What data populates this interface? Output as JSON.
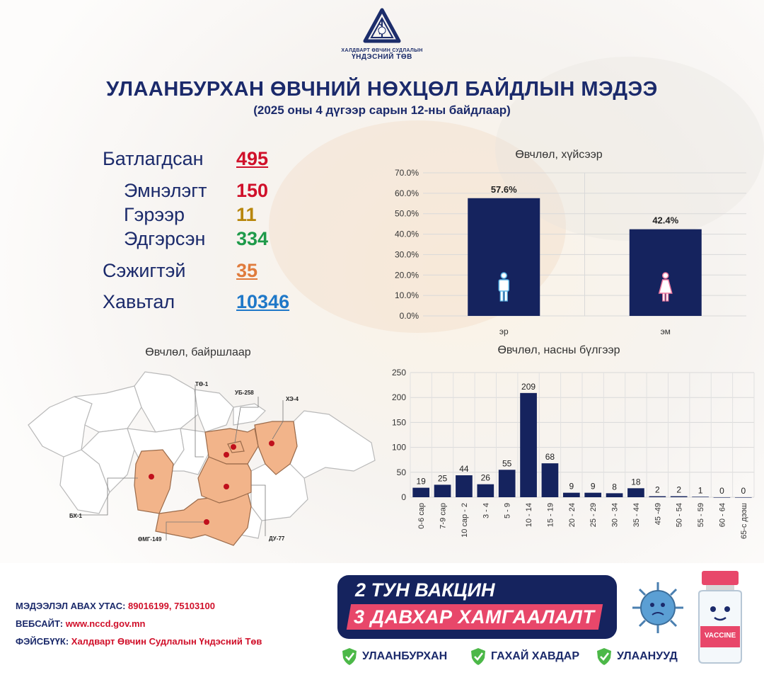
{
  "logo": {
    "org_small": "ХАЛДВАРТ ӨВЧИН СУДЛАЛЫН",
    "org_big": "ҮНДЭСНИЙ ТӨВ"
  },
  "header": {
    "title": "УЛААНБУРХАН ӨВЧНИЙ НӨХЦӨЛ БАЙДЛЫН МЭДЭЭ",
    "subtitle": "(2025 оны 4 дүгээр сарын 12-ны байдлаар)"
  },
  "stats": {
    "confirmed_label": "Батлагдсан",
    "confirmed_value": "495",
    "hospital_label": "Эмнэлэгт",
    "hospital_value": "150",
    "home_label": "Гэрээр",
    "home_value": "11",
    "recovered_label": "Эдгэрсэн",
    "recovered_value": "334",
    "suspected_label": "Сэжигтэй",
    "suspected_value": "35",
    "contacts_label": "Хавьтал",
    "contacts_value": "10346"
  },
  "colors": {
    "navy": "#1b2a6b",
    "bar": "#15235e",
    "red": "#d0102a",
    "amber": "#b8860b",
    "green": "#1e9a4a",
    "orange": "#e07b3c",
    "blue": "#1f78c8",
    "map_fill": "#f2b48a",
    "pink": "#e8476a"
  },
  "chart_data": [
    {
      "type": "bar",
      "title": "Өвчлөл, хүйсээр",
      "categories": [
        "эр",
        "эм"
      ],
      "values": [
        57.6,
        42.4
      ],
      "value_labels": [
        "57.6%",
        "42.4%"
      ],
      "icons": [
        "male-icon",
        "female-icon"
      ],
      "ylim": [
        0,
        70
      ],
      "yticks": [
        "0.0%",
        "10.0%",
        "20.0%",
        "30.0%",
        "40.0%",
        "50.0%",
        "60.0%",
        "70.0%"
      ],
      "grid": true
    },
    {
      "type": "bar",
      "title": "Өвчлөл, насны бүлгээр",
      "categories": [
        "0-6 сар",
        "7-9 сар",
        "10 сар - 2",
        "3 - 4",
        "5 - 9",
        "10 - 14",
        "15 - 19",
        "20 - 24",
        "25 - 29",
        "30 - 34",
        "35 - 44",
        "45 -49",
        "50 - 54",
        "55 - 59",
        "60 - 64",
        "65-с дээш"
      ],
      "values": [
        19,
        25,
        44,
        26,
        55,
        209,
        68,
        9,
        9,
        8,
        18,
        2,
        2,
        1,
        0,
        0
      ],
      "ylim": [
        0,
        250
      ],
      "yticks": [
        "0",
        "50",
        "100",
        "150",
        "200",
        "250"
      ],
      "grid": true
    }
  ],
  "map": {
    "title": "Өвчлөл, байршлаар",
    "labels": [
      "ТӨ-1",
      "УБ-258",
      "ХЭ-4",
      "БХ-1",
      "ӨМГ-149",
      "ДУ-77"
    ]
  },
  "footer": {
    "phone_label": "МЭДЭЭЛЭЛ АВАХ УТАС:",
    "phone_value": "89016199, 75103100",
    "web_label": "ВЕБСАЙТ:",
    "web_value": "www.nccd.gov.mn",
    "fb_label": "ФЭЙСБҮҮК:",
    "fb_value": "Халдварт Өвчин Судлалын Үндэсний Төв",
    "vaccine_line1": "2 ТУН ВАКЦИН",
    "vaccine_line2": "3 ДАВХАР ХАМГААЛАЛТ",
    "diseases": [
      "УЛААНБУРХАН",
      "ГАХАЙ ХАВДАР",
      "УЛААНУУД"
    ],
    "vaccine_bottle_label": "VACCINE"
  }
}
